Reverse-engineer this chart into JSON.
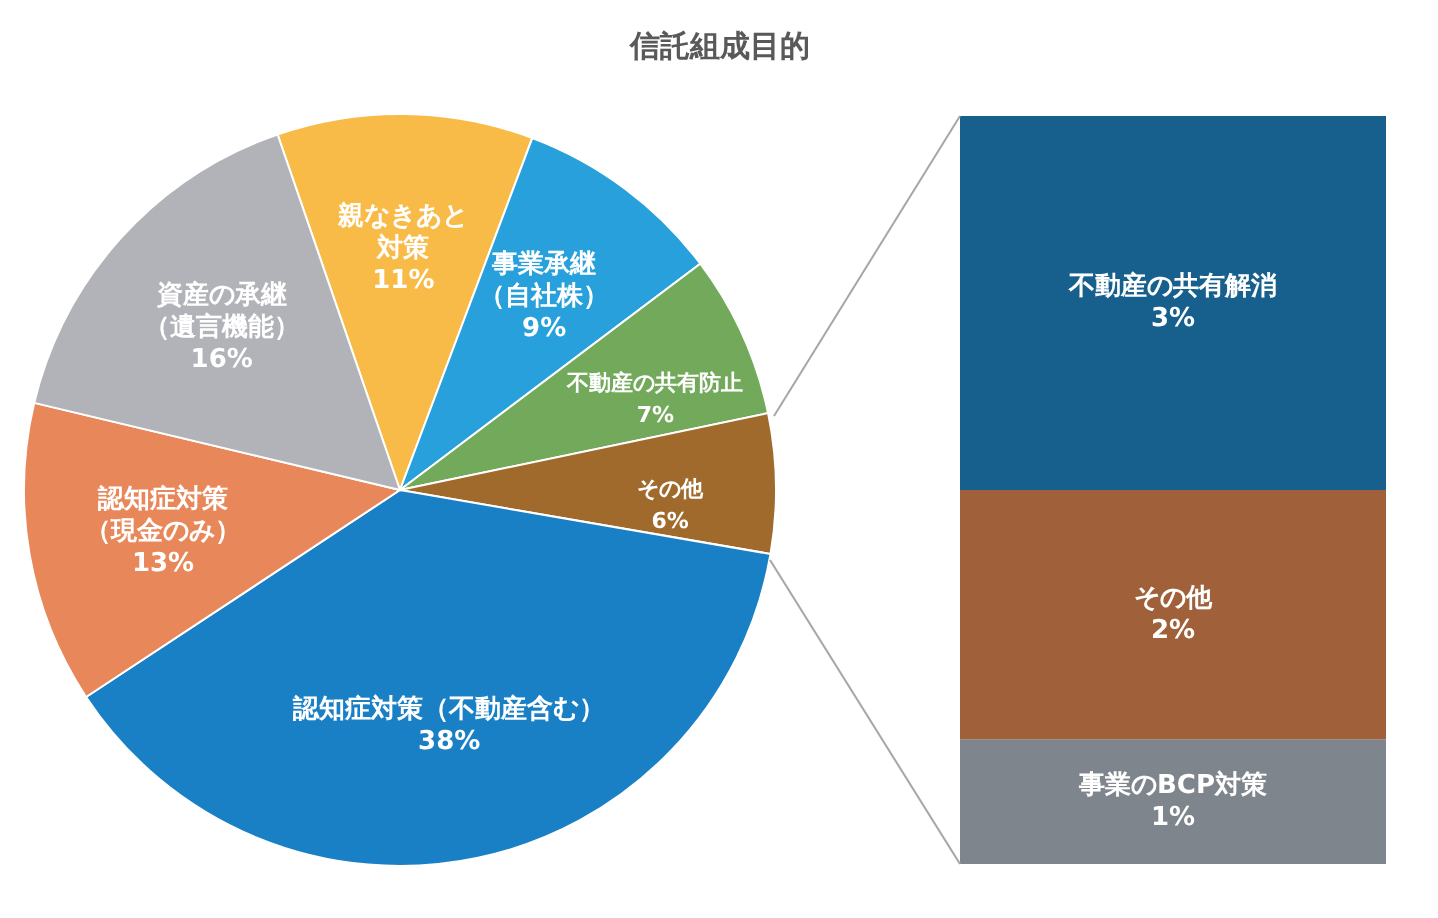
{
  "chart_data": [
    {
      "type": "pie",
      "title": "信託組成目的",
      "categories": [
        "親なきあと対策",
        "事業承継（自社株）",
        "不動産の共有防止",
        "その他",
        "認知症対策（不動産含む）",
        "認知症対策（現金のみ）",
        "資産の承継（遺言機能）"
      ],
      "values": [
        11,
        9,
        7,
        6,
        38,
        13,
        16
      ],
      "value_labels": [
        "11%",
        "9%",
        "7%",
        "6%",
        "38%",
        "13%",
        "16%"
      ],
      "colors": [
        "#f9bb48",
        "#27a0dc",
        "#72a95a",
        "#a06a2c",
        "#1a80c6",
        "#e8875a",
        "#b1b3b8"
      ]
    },
    {
      "type": "bar",
      "stacked": true,
      "categories": [
        null
      ],
      "series": [
        {
          "name": "事業のBCP対策",
          "color": "#7e858c",
          "values": [
            1
          ],
          "value_labels": [
            "1%"
          ]
        },
        {
          "name": "その他",
          "color": "#a0603a",
          "values": [
            2
          ],
          "value_labels": [
            "2%"
          ]
        },
        {
          "name": "不動産の共有解消",
          "color": "#175f8c",
          "values": [
            3
          ],
          "value_labels": [
            "3%"
          ]
        }
      ]
    }
  ]
}
